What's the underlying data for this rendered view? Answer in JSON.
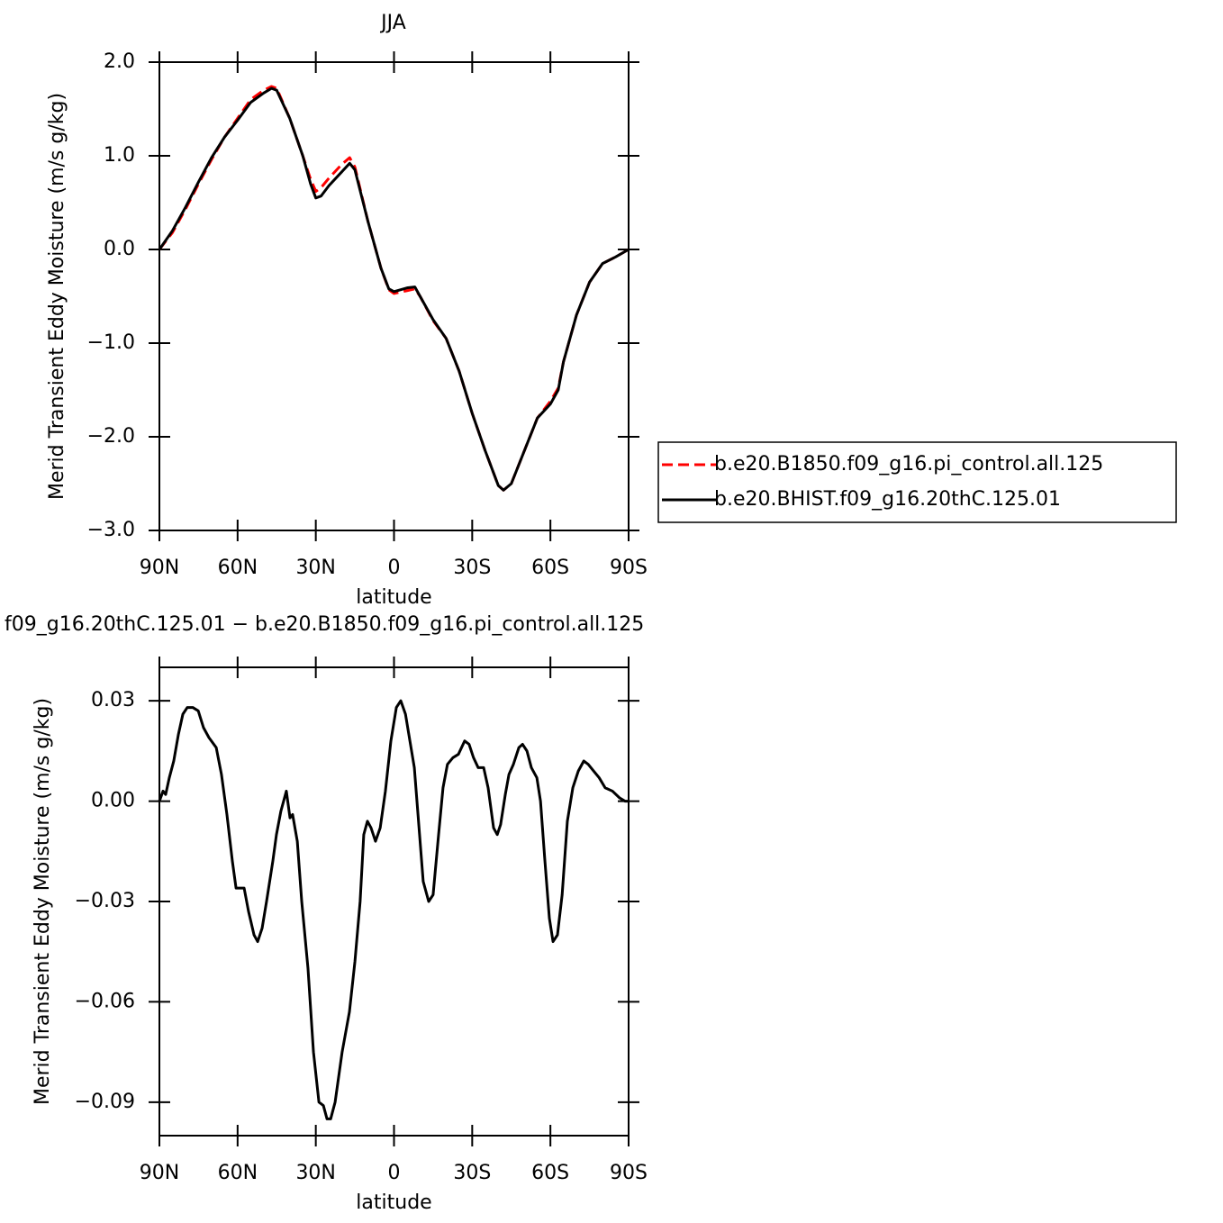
{
  "chart_data": [
    {
      "type": "line",
      "title": "JJA",
      "xlabel": "latitude",
      "ylabel": "Merid Transient Eddy Moisture (m/s g/kg)",
      "xlim": [
        90,
        -90
      ],
      "xticks": [
        {
          "value": 90,
          "label": "90N"
        },
        {
          "value": 60,
          "label": "60N"
        },
        {
          "value": 30,
          "label": "30N"
        },
        0,
        {
          "value": -30,
          "label": "30S"
        },
        {
          "value": -60,
          "label": "60S"
        },
        {
          "value": -90,
          "label": "90S"
        }
      ],
      "ylim": [
        -3,
        2
      ],
      "yticks": [
        {
          "value": 2,
          "label": "2.0"
        },
        {
          "value": 1,
          "label": "1.0"
        },
        {
          "value": 0,
          "label": "0.0"
        },
        {
          "value": -1,
          "label": "−1.0"
        },
        {
          "value": -2,
          "label": "−2.0"
        },
        {
          "value": -3,
          "label": "−3.0"
        }
      ],
      "legend": "right",
      "x": [
        90,
        85,
        80,
        75,
        70,
        65,
        60,
        55,
        50,
        47,
        45,
        40,
        35,
        32,
        30,
        28,
        25,
        20,
        17,
        15,
        10,
        5,
        2,
        0,
        -5,
        -8,
        -10,
        -15,
        -20,
        -25,
        -30,
        -35,
        -40,
        -42,
        -45,
        -50,
        -55,
        -60,
        -63,
        -65,
        -70,
        -75,
        -80,
        -85,
        -90
      ],
      "series": [
        {
          "name": "b.e20.B1850.f09_g16.pi_control.all.125",
          "color": "#ff0000",
          "style": "dashed",
          "values": [
            0,
            0.18,
            0.43,
            0.7,
            0.96,
            1.2,
            1.4,
            1.6,
            1.7,
            1.74,
            1.72,
            1.4,
            1.0,
            0.75,
            0.62,
            0.66,
            0.76,
            0.91,
            0.98,
            0.88,
            0.3,
            -0.2,
            -0.43,
            -0.47,
            -0.44,
            -0.42,
            -0.5,
            -0.76,
            -0.95,
            -1.3,
            -1.75,
            -2.15,
            -2.52,
            -2.57,
            -2.5,
            -2.15,
            -1.8,
            -1.62,
            -1.48,
            -1.2,
            -0.7,
            -0.35,
            -0.15,
            -0.08,
            0
          ]
        },
        {
          "name": "b.e20.BHIST.f09_g16.20thC.125.01",
          "color": "#000000",
          "style": "solid",
          "values": [
            0,
            0.2,
            0.45,
            0.72,
            0.98,
            1.2,
            1.38,
            1.57,
            1.67,
            1.72,
            1.7,
            1.4,
            1.0,
            0.7,
            0.55,
            0.57,
            0.68,
            0.83,
            0.92,
            0.85,
            0.3,
            -0.2,
            -0.42,
            -0.45,
            -0.41,
            -0.4,
            -0.5,
            -0.75,
            -0.95,
            -1.3,
            -1.75,
            -2.15,
            -2.52,
            -2.57,
            -2.5,
            -2.15,
            -1.8,
            -1.65,
            -1.5,
            -1.2,
            -0.7,
            -0.35,
            -0.15,
            -0.08,
            0
          ]
        }
      ]
    },
    {
      "type": "line",
      "title": "f09_g16.20thC.125.01 − b.e20.B1850.f09_g16.pi_control.all.125",
      "xlabel": "latitude",
      "ylabel": "Merid Transient Eddy Moisture (m/s g/kg)",
      "xlim": [
        90,
        -90
      ],
      "xticks": [
        {
          "value": 90,
          "label": "90N"
        },
        {
          "value": 60,
          "label": "60N"
        },
        {
          "value": 30,
          "label": "30N"
        },
        0,
        {
          "value": -30,
          "label": "30S"
        },
        {
          "value": -60,
          "label": "60S"
        },
        {
          "value": -90,
          "label": "90S"
        }
      ],
      "ylim": [
        -0.1,
        0.04
      ],
      "yticks": [
        0.03,
        {
          "value": 0,
          "label": "0.00"
        },
        {
          "value": -0.03,
          "label": "−0.03"
        },
        {
          "value": -0.06,
          "label": "−0.06"
        },
        {
          "value": -0.09,
          "label": "−0.09"
        }
      ],
      "x": [
        90,
        88.6,
        87.6,
        86.2,
        84.5,
        82.7,
        81,
        79.3,
        77.2,
        75.1,
        73.1,
        71,
        68.2,
        66.2,
        64.1,
        62,
        60.6,
        59.2,
        57.5,
        55.8,
        53.7,
        52.3,
        50.6,
        48.9,
        46.5,
        45.1,
        43.4,
        41.3,
        39.9,
        38.9,
        37.1,
        35.4,
        33,
        30.9,
        28.8,
        27.1,
        25.7,
        24.3,
        22.6,
        19.9,
        17.1,
        15,
        13,
        11.6,
        10.2,
        8.8,
        7.1,
        5.3,
        3.3,
        1.2,
        -0.9,
        -2.6,
        -4.4,
        -6.1,
        -7.8,
        -9.6,
        -11.2,
        -13.3,
        -15,
        -17.1,
        -18.8,
        -20.5,
        -22.6,
        -24.7,
        -27.1,
        -28.8,
        -30.5,
        -32.3,
        -34.4,
        -36.1,
        -38.2,
        -39.6,
        -40.9,
        -42.7,
        -44.1,
        -45.8,
        -47.9,
        -49.3,
        -51,
        -52.7,
        -54.8,
        -56.2,
        -57.9,
        -59.6,
        -61,
        -62.7,
        -64.5,
        -66.5,
        -68.6,
        -70.7,
        -72.8,
        -74.5,
        -76.6,
        -78.7,
        -81,
        -83.8,
        -86.5,
        -88.6,
        -90
      ],
      "series": [
        {
          "color": "#000000",
          "style": "solid",
          "values": [
            0,
            0.003,
            0.002,
            0.007,
            0.012,
            0.02,
            0.026,
            0.028,
            0.028,
            0.027,
            0.022,
            0.019,
            0.016,
            0.008,
            -0.004,
            -0.018,
            -0.026,
            -0.026,
            -0.026,
            -0.033,
            -0.04,
            -0.042,
            -0.038,
            -0.03,
            -0.018,
            -0.01,
            -0.003,
            0.003,
            -0.005,
            -0.004,
            -0.012,
            -0.03,
            -0.05,
            -0.075,
            -0.09,
            -0.091,
            -0.095,
            -0.095,
            -0.09,
            -0.075,
            -0.063,
            -0.048,
            -0.03,
            -0.01,
            -0.006,
            -0.008,
            -0.012,
            -0.008,
            0.003,
            0.018,
            0.028,
            0.03,
            0.026,
            0.018,
            0.01,
            -0.008,
            -0.024,
            -0.03,
            -0.028,
            -0.01,
            0.004,
            0.011,
            0.013,
            0.014,
            0.018,
            0.017,
            0.013,
            0.01,
            0.01,
            0.004,
            -0.008,
            -0.01,
            -0.007,
            0.002,
            0.008,
            0.011,
            0.016,
            0.017,
            0.015,
            0.01,
            0.007,
            0,
            -0.018,
            -0.035,
            -0.042,
            -0.04,
            -0.028,
            -0.006,
            0.004,
            0.009,
            0.012,
            0.011,
            0.009,
            0.007,
            0.004,
            0.003,
            0.001,
            0,
            0
          ]
        }
      ]
    }
  ]
}
